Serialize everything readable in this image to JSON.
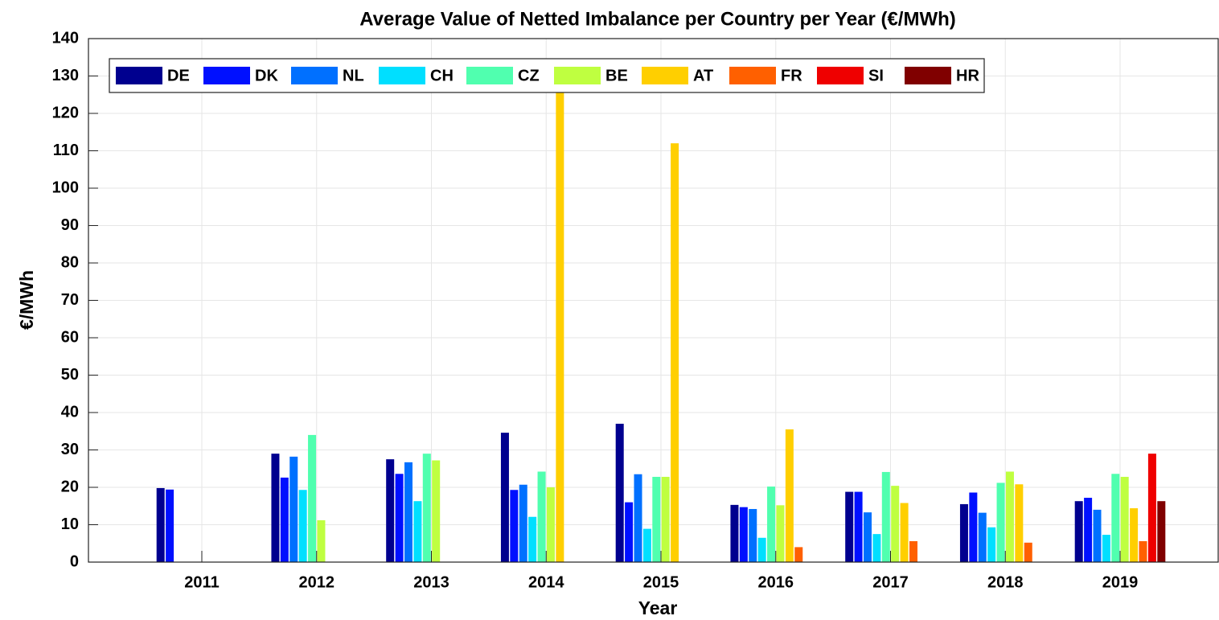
{
  "chart_data": {
    "type": "bar",
    "title": "Average Value of Netted Imbalance per Country per Year (€/MWh)",
    "x_label": "Year",
    "y_label": "€/MWh",
    "categories": [
      "2011",
      "2012",
      "2013",
      "2014",
      "2015",
      "2016",
      "2017",
      "2018",
      "2019"
    ],
    "series": [
      {
        "name": "DE",
        "color": "#00008f",
        "values": [
          19.8,
          29,
          27.5,
          34.6,
          37,
          15.3,
          18.8,
          15.5,
          16.3
        ]
      },
      {
        "name": "DK",
        "color": "#0010ff",
        "values": [
          19.4,
          22.6,
          23.6,
          19.3,
          16,
          14.7,
          18.8,
          18.6,
          17.2
        ]
      },
      {
        "name": "NL",
        "color": "#0070ff",
        "values": [
          null,
          28.2,
          26.7,
          20.7,
          23.5,
          14.2,
          13.3,
          13.2,
          14
        ]
      },
      {
        "name": "CH",
        "color": "#00dfff",
        "values": [
          null,
          19.3,
          16.3,
          12.1,
          8.9,
          6.5,
          7.5,
          9.3,
          7.3
        ]
      },
      {
        "name": "CZ",
        "color": "#50ffaf",
        "values": [
          null,
          34,
          29,
          24.2,
          22.8,
          20.2,
          24.1,
          21.2,
          23.6
        ]
      },
      {
        "name": "BE",
        "color": "#bfff40",
        "values": [
          null,
          11.2,
          27.2,
          20,
          22.8,
          15.2,
          20.4,
          24.2,
          22.8
        ]
      },
      {
        "name": "AT",
        "color": "#ffcf00",
        "values": [
          null,
          null,
          null,
          126,
          112,
          35.5,
          15.8,
          20.8,
          14.4
        ]
      },
      {
        "name": "FR",
        "color": "#ff6000",
        "values": [
          null,
          null,
          null,
          null,
          null,
          4,
          5.6,
          5.2,
          5.6
        ]
      },
      {
        "name": "SI",
        "color": "#ef0000",
        "values": [
          null,
          null,
          null,
          null,
          null,
          null,
          null,
          null,
          29
        ]
      },
      {
        "name": "HR",
        "color": "#800000",
        "values": [
          null,
          null,
          null,
          null,
          null,
          null,
          null,
          null,
          16.3
        ]
      }
    ],
    "ylim": [
      0,
      140
    ],
    "yticks": [
      0,
      10,
      20,
      30,
      40,
      50,
      60,
      70,
      80,
      90,
      100,
      110,
      120,
      130,
      140
    ],
    "grid": true,
    "legend": "top-left"
  }
}
